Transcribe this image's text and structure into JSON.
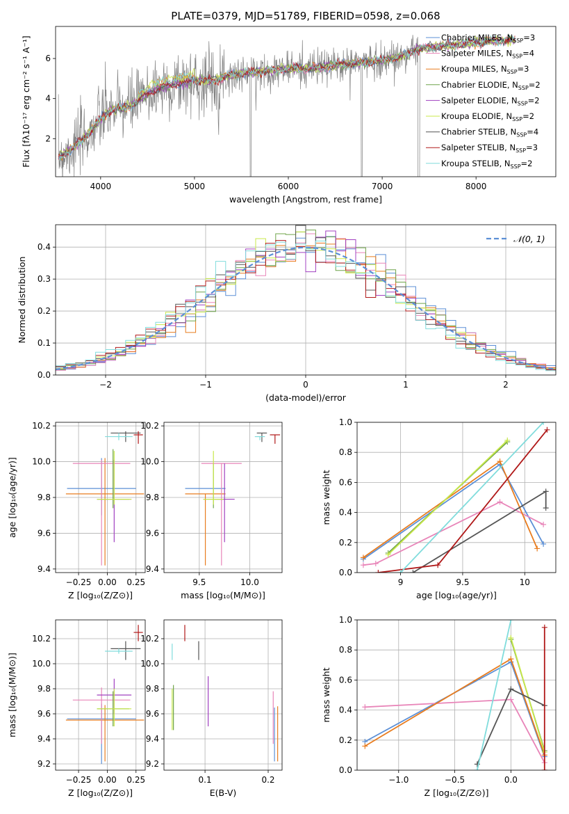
{
  "chart_data": [
    {
      "id": "spectrum",
      "type": "line",
      "title": "PLATE=0379, MJD=51789, FIBERID=0598, z=0.068",
      "xlabel": "wavelength [Angstrom, rest frame]",
      "ylabel": "Flux [fλ10⁻¹⁷ erg cm⁻² s⁻¹ A⁻¹]",
      "xlim": [
        3520,
        8850
      ],
      "ylim": [
        0.1,
        7.6
      ],
      "xticks": [
        4000,
        5000,
        6000,
        7000,
        8000
      ],
      "yticks": [
        2,
        4,
        6
      ],
      "legend_position": "right",
      "legend": [
        {
          "label": "Chabrier MILES, N",
          "sub": "SSP",
          "n": "=3",
          "color": "#5b8fd6"
        },
        {
          "label": "Salpeter MILES, N",
          "sub": "SSP",
          "n": "=4",
          "color": "#e884b8"
        },
        {
          "label": "Kroupa MILES, N",
          "sub": "SSP",
          "n": "=3",
          "color": "#e87c1e"
        },
        {
          "label": "Chabrier ELODIE, N",
          "sub": "SSP",
          "n": "=2",
          "color": "#6fa44a"
        },
        {
          "label": "Salpeter ELODIE, N",
          "sub": "SSP",
          "n": "=2",
          "color": "#a040c0"
        },
        {
          "label": "Kroupa ELODIE, N",
          "sub": "SSP",
          "n": "=2",
          "color": "#c8e84a"
        },
        {
          "label": "Chabrier STELIB, N",
          "sub": "SSP",
          "n": "=4",
          "color": "#555555"
        },
        {
          "label": "Salpeter STELIB, N",
          "sub": "SSP",
          "n": "=3",
          "color": "#b01818"
        },
        {
          "label": "Kroupa STELIB, N",
          "sub": "SSP",
          "n": "=2",
          "color": "#80dcdc"
        }
      ],
      "continuum": [
        [
          3550,
          1.1
        ],
        [
          3700,
          1.5
        ],
        [
          3800,
          1.9
        ],
        [
          3900,
          2.4
        ],
        [
          4000,
          3.0
        ],
        [
          4100,
          3.4
        ],
        [
          4200,
          3.5
        ],
        [
          4300,
          3.6
        ],
        [
          4400,
          3.9
        ],
        [
          4500,
          4.2
        ],
        [
          4600,
          4.5
        ],
        [
          4800,
          4.7
        ],
        [
          5000,
          4.9
        ],
        [
          5200,
          4.9
        ],
        [
          5400,
          5.2
        ],
        [
          5600,
          5.3
        ],
        [
          5800,
          5.4
        ],
        [
          6000,
          5.5
        ],
        [
          6200,
          5.5
        ],
        [
          6400,
          5.6
        ],
        [
          6600,
          5.7
        ],
        [
          6800,
          5.8
        ],
        [
          7000,
          5.9
        ],
        [
          7200,
          6.1
        ],
        [
          7400,
          6.5
        ],
        [
          7600,
          6.6
        ],
        [
          7800,
          6.7
        ],
        [
          8000,
          6.8
        ],
        [
          8200,
          6.9
        ],
        [
          8400,
          6.9
        ]
      ]
    },
    {
      "id": "residuals",
      "type": "histogram",
      "xlabel": "(data-model)/error",
      "ylabel": "Normed distribution",
      "xlim": [
        -2.5,
        2.5
      ],
      "ylim": [
        0,
        0.47
      ],
      "xticks": [
        -2,
        -1,
        0,
        1,
        2
      ],
      "yticks": [
        0.0,
        0.1,
        0.2,
        0.3,
        0.4
      ],
      "legend_position": "top-right",
      "legend": "𝒩(0, 1)",
      "reference_curve": {
        "mean": 0,
        "sigma": 1,
        "color": "#5b8fd6",
        "style": "dashed"
      }
    },
    {
      "id": "age-vs-Z",
      "type": "errorbar",
      "xlabel": "Z [log₁₀(Z/Z⊙)]",
      "ylabel": "age  [log₁₀(age/yr)]",
      "xlim": [
        -0.45,
        0.33
      ],
      "ylim": [
        9.38,
        10.22
      ],
      "xticks": [
        -0.25,
        0.0,
        0.25
      ],
      "xtick_labels": [
        "−0.25",
        "0.00",
        "0.25"
      ],
      "yticks": [
        9.4,
        9.6,
        9.8,
        10.0,
        10.2
      ],
      "points": [
        {
          "x": -0.05,
          "y": 9.85,
          "xerr": 0.3,
          "yerr": [
            0.15,
            0.17
          ],
          "color": "#5b8fd6"
        },
        {
          "x": -0.02,
          "y": 9.82,
          "xerr": 0.34,
          "yerr": [
            0.4,
            0.2
          ],
          "color": "#e87c1e"
        },
        {
          "x": -0.05,
          "y": 9.99,
          "xerr": 0.25,
          "yerr": [
            0.57,
            0.02
          ],
          "color": "#e884b8"
        },
        {
          "x": 0.06,
          "y": 9.79,
          "xerr": 0.15,
          "yerr": [
            0.24,
            0.22
          ],
          "color": "#a040c0"
        },
        {
          "x": 0.05,
          "y": 9.79,
          "xerr": 0.14,
          "yerr": [
            0.05,
            0.28
          ],
          "color": "#6fa44a"
        },
        {
          "x": 0.06,
          "y": 9.79,
          "xerr": 0.15,
          "yerr": [
            0.03,
            0.27
          ],
          "color": "#c8e84a"
        },
        {
          "x": 0.16,
          "y": 10.16,
          "xerr": 0.13,
          "yerr": [
            0.05,
            0.01
          ],
          "color": "#555555"
        },
        {
          "x": 0.27,
          "y": 10.15,
          "xerr": 0.04,
          "yerr": [
            0.05,
            0.02
          ],
          "color": "#b01818"
        },
        {
          "x": 0.1,
          "y": 10.14,
          "xerr": 0.12,
          "yerr": [
            0.02,
            0.02
          ],
          "color": "#80dcdc"
        }
      ]
    },
    {
      "id": "age-vs-mass",
      "type": "errorbar",
      "xlabel": "mass [log₁₀(M/M⊙)]",
      "ylabel": "",
      "xlim": [
        9.15,
        10.32
      ],
      "ylim": [
        9.38,
        10.22
      ],
      "xticks": [
        9.5,
        10.0
      ],
      "xtick_labels": [
        "9.5",
        "10.0"
      ],
      "yticks": [
        9.4,
        9.6,
        9.8,
        10.0,
        10.2
      ],
      "points": [
        {
          "x": 9.56,
          "y": 9.85,
          "xerr": 0.2,
          "yerr": [
            0.0,
            0.0
          ],
          "color": "#5b8fd6"
        },
        {
          "x": 9.56,
          "y": 9.82,
          "xerr": 0.2,
          "yerr": [
            0.4,
            0.0
          ],
          "color": "#e87c1e"
        },
        {
          "x": 9.72,
          "y": 9.99,
          "xerr": 0.2,
          "yerr": [
            0.57,
            0.0
          ],
          "color": "#e884b8"
        },
        {
          "x": 9.75,
          "y": 9.79,
          "xerr": 0.1,
          "yerr": [
            0.24,
            0.2
          ],
          "color": "#a040c0"
        },
        {
          "x": 9.64,
          "y": 9.79,
          "xerr": 0.1,
          "yerr": [
            0.05,
            0.2
          ],
          "color": "#6fa44a"
        },
        {
          "x": 9.64,
          "y": 9.79,
          "xerr": 0.1,
          "yerr": [
            0.03,
            0.27
          ],
          "color": "#c8e84a"
        },
        {
          "x": 10.12,
          "y": 10.16,
          "xerr": 0.05,
          "yerr": [
            0.05,
            0.0
          ],
          "color": "#555555"
        },
        {
          "x": 10.25,
          "y": 10.15,
          "xerr": 0.05,
          "yerr": [
            0.05,
            0.0
          ],
          "color": "#b01818"
        },
        {
          "x": 10.1,
          "y": 10.14,
          "xerr": 0.05,
          "yerr": [
            0.02,
            0.0
          ],
          "color": "#80dcdc"
        }
      ]
    },
    {
      "id": "weight-vs-age",
      "type": "line",
      "xlabel": "age  [log₁₀(age/yr)]",
      "ylabel": "mass weight",
      "xlim": [
        8.65,
        10.25
      ],
      "ylim": [
        0.0,
        1.0
      ],
      "xticks": [
        9.0,
        9.5,
        10.0
      ],
      "yticks": [
        0.0,
        0.2,
        0.4,
        0.6,
        0.8,
        1.0
      ],
      "series": [
        {
          "color": "#5b8fd6",
          "points": [
            [
              8.7,
              0.09
            ],
            [
              9.8,
              0.72
            ],
            [
              10.15,
              0.19
            ]
          ]
        },
        {
          "color": "#e884b8",
          "points": [
            [
              8.7,
              0.05
            ],
            [
              8.8,
              0.06
            ],
            [
              9.8,
              0.47
            ],
            [
              10.15,
              0.32
            ]
          ]
        },
        {
          "color": "#e87c1e",
          "points": [
            [
              8.7,
              0.1
            ],
            [
              9.8,
              0.74
            ],
            [
              10.1,
              0.16
            ]
          ]
        },
        {
          "color": "#6fa44a",
          "points": [
            [
              8.9,
              0.13
            ],
            [
              9.86,
              0.87
            ]
          ]
        },
        {
          "color": "#c8e84a",
          "points": [
            [
              8.9,
              0.12
            ],
            [
              9.86,
              0.88
            ]
          ]
        },
        {
          "color": "#555555",
          "points": [
            [
              9.1,
              0.0
            ],
            [
              10.17,
              0.54
            ],
            [
              10.17,
              0.43
            ]
          ]
        },
        {
          "color": "#b01818",
          "points": [
            [
              8.82,
              0.0
            ],
            [
              9.3,
              0.05
            ],
            [
              10.18,
              0.95
            ]
          ]
        },
        {
          "color": "#80dcdc",
          "points": [
            [
              9.0,
              0.0
            ],
            [
              10.15,
              1.0
            ]
          ]
        }
      ]
    },
    {
      "id": "mass-vs-Z",
      "type": "errorbar",
      "xlabel": "Z [log₁₀(Z/Z⊙)]",
      "ylabel": "mass [log₁₀(M/M⊙)]",
      "xlim": [
        -0.45,
        0.33
      ],
      "ylim": [
        9.15,
        10.35
      ],
      "xticks": [
        -0.25,
        0.0,
        0.25
      ],
      "xtick_labels": [
        "−0.25",
        "0.00",
        "0.25"
      ],
      "yticks": [
        9.2,
        9.4,
        9.6,
        9.8,
        10.0,
        10.2
      ],
      "points": [
        {
          "x": -0.05,
          "y": 9.56,
          "xerr": 0.3,
          "yerr": [
            0.36,
            0.12
          ],
          "color": "#5b8fd6"
        },
        {
          "x": -0.02,
          "y": 9.55,
          "xerr": 0.34,
          "yerr": [
            0.33,
            0.12
          ],
          "color": "#e87c1e"
        },
        {
          "x": -0.05,
          "y": 9.71,
          "xerr": 0.25,
          "yerr": [
            0.35,
            0.1
          ],
          "color": "#e884b8"
        },
        {
          "x": 0.06,
          "y": 9.75,
          "xerr": 0.15,
          "yerr": [
            0.15,
            0.13
          ],
          "color": "#a040c0"
        },
        {
          "x": 0.05,
          "y": 9.64,
          "xerr": 0.14,
          "yerr": [
            0.14,
            0.14
          ],
          "color": "#6fa44a"
        },
        {
          "x": 0.06,
          "y": 9.64,
          "xerr": 0.15,
          "yerr": [
            0.14,
            0.16
          ],
          "color": "#c8e84a"
        },
        {
          "x": 0.16,
          "y": 10.12,
          "xerr": 0.13,
          "yerr": [
            0.09,
            0.06
          ],
          "color": "#555555"
        },
        {
          "x": 0.27,
          "y": 10.25,
          "xerr": 0.04,
          "yerr": [
            0.07,
            0.06
          ],
          "color": "#b01818"
        },
        {
          "x": 0.1,
          "y": 10.1,
          "xerr": 0.12,
          "yerr": [
            0.02,
            0.02
          ],
          "color": "#80dcdc"
        }
      ]
    },
    {
      "id": "mass-vs-EBV",
      "type": "errorbar",
      "xlabel": "E(B-V)",
      "ylabel": "",
      "xlim": [
        0.035,
        0.222
      ],
      "ylim": [
        9.15,
        10.35
      ],
      "xticks": [
        0.1,
        0.2
      ],
      "xtick_labels": [
        "0.1",
        "0.2"
      ],
      "yticks": [
        9.2,
        9.4,
        9.6,
        9.8,
        10.0,
        10.2
      ],
      "points": [
        {
          "x": 0.21,
          "y": 9.55,
          "xerr": 0,
          "yerr": [
            0.33,
            0.1
          ],
          "color": "#5b8fd6"
        },
        {
          "x": 0.215,
          "y": 9.48,
          "xerr": 0,
          "yerr": [
            0.26,
            0.18
          ],
          "color": "#e87c1e"
        },
        {
          "x": 0.208,
          "y": 9.5,
          "xerr": 0,
          "yerr": [
            0.14,
            0.28
          ],
          "color": "#e884b8"
        },
        {
          "x": 0.105,
          "y": 9.7,
          "xerr": 0,
          "yerr": [
            0.2,
            0.2
          ],
          "color": "#a040c0"
        },
        {
          "x": 0.05,
          "y": 9.65,
          "xerr": 0,
          "yerr": [
            0.18,
            0.18
          ],
          "color": "#6fa44a"
        },
        {
          "x": 0.048,
          "y": 9.65,
          "xerr": 0,
          "yerr": [
            0.18,
            0.15
          ],
          "color": "#c8e84a"
        },
        {
          "x": 0.09,
          "y": 10.12,
          "xerr": 0,
          "yerr": [
            0.09,
            0.06
          ],
          "color": "#555555"
        },
        {
          "x": 0.068,
          "y": 10.25,
          "xerr": 0,
          "yerr": [
            0.07,
            0.06
          ],
          "color": "#b01818"
        },
        {
          "x": 0.048,
          "y": 10.1,
          "xerr": 0,
          "yerr": [
            0.07,
            0.06
          ],
          "color": "#80dcdc"
        }
      ]
    },
    {
      "id": "weight-vs-Z",
      "type": "line",
      "xlabel": "Z [log₁₀(Z/Z⊙)]",
      "ylabel": "mass weight",
      "xlim": [
        -1.37,
        0.4
      ],
      "ylim": [
        0.0,
        1.0
      ],
      "xticks": [
        -1.0,
        -0.5,
        0.0
      ],
      "xtick_labels": [
        "−1.0",
        "−0.5",
        "0.0"
      ],
      "yticks": [
        0.0,
        0.2,
        0.4,
        0.6,
        0.8,
        1.0
      ],
      "series": [
        {
          "color": "#5b8fd6",
          "points": [
            [
              -1.3,
              0.19
            ],
            [
              0.0,
              0.72
            ],
            [
              0.3,
              0.09
            ]
          ]
        },
        {
          "color": "#e884b8",
          "points": [
            [
              -1.3,
              0.42
            ],
            [
              0.0,
              0.47
            ],
            [
              0.3,
              0.05
            ]
          ]
        },
        {
          "color": "#e87c1e",
          "points": [
            [
              -1.3,
              0.16
            ],
            [
              0.0,
              0.74
            ],
            [
              0.3,
              0.1
            ]
          ]
        },
        {
          "color": "#6fa44a",
          "points": [
            [
              0.0,
              0.87
            ],
            [
              0.3,
              0.13
            ]
          ]
        },
        {
          "color": "#c8e84a",
          "points": [
            [
              0.0,
              0.88
            ],
            [
              0.3,
              0.12
            ]
          ]
        },
        {
          "color": "#555555",
          "points": [
            [
              -0.3,
              0.04
            ],
            [
              0.0,
              0.54
            ],
            [
              0.3,
              0.43
            ]
          ]
        },
        {
          "color": "#b01818",
          "points": [
            [
              0.3,
              0.0
            ],
            [
              0.3,
              0.95
            ]
          ]
        },
        {
          "color": "#80dcdc",
          "points": [
            [
              -0.3,
              0.0
            ],
            [
              0.0,
              1.0
            ]
          ]
        }
      ]
    }
  ]
}
